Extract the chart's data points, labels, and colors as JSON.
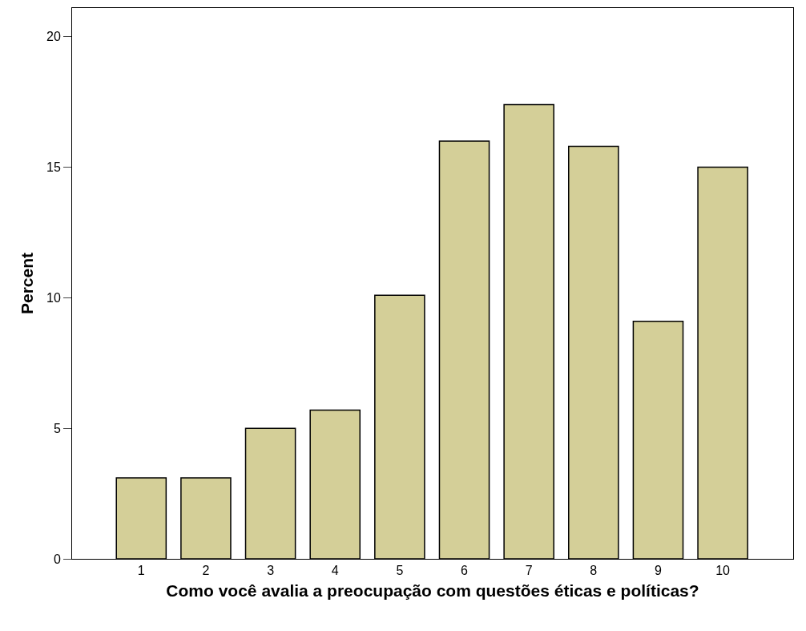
{
  "chart_data": {
    "type": "bar",
    "xlabel": "Como você avalia a preocupação com questões éticas e políticas?",
    "ylabel": "Percent",
    "categories": [
      "1",
      "2",
      "3",
      "4",
      "5",
      "6",
      "7",
      "8",
      "9",
      "10"
    ],
    "values": [
      3.1,
      3.1,
      5.0,
      5.7,
      10.1,
      16.0,
      17.4,
      15.8,
      9.1,
      15.0
    ],
    "color": "#d4cf98",
    "ylim": [
      0,
      21.1
    ],
    "yticks": [
      0,
      5,
      10,
      15,
      20
    ]
  }
}
